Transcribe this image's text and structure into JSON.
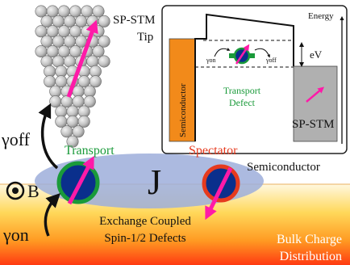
{
  "tip": {
    "label_line1": "SP-STM",
    "label_line2": "Tip"
  },
  "inset": {
    "energy_label": "Energy",
    "semiconductor_label": "Semiconductor",
    "gamma_on_label": "γon",
    "gamma_off_label": "γoff",
    "bias_label": "eV",
    "defect_label_line1": "Transport",
    "defect_label_line2": "Defect",
    "spstm_label": "SP-STM"
  },
  "main": {
    "gamma_off_label": "γoff",
    "gamma_on_label": "γon",
    "b_field_label": "B",
    "transport_label": "Transport",
    "spectator_label": "Spectator",
    "coupling_label": "J",
    "semiconductor_label": "Semiconductor",
    "defects_label_line1": "Exchange Coupled",
    "defects_label_line2": "Spin-1/2 Defects",
    "bulk_label_line1": "Bulk Charge",
    "bulk_label_line2": "Distribution"
  },
  "colors": {
    "transport_green": "#1a9a3a",
    "spectator_red": "#e63a1e",
    "spin_arrow": "#ff1aa8",
    "defect_blue": "#0a2f8c",
    "semiconductor_orange": "#f28a1a",
    "coupling_ellipse": "#9aa8d6",
    "bulk_gradient_top": "#fff4d6",
    "bulk_gradient_bottom": "#ff3a12"
  }
}
